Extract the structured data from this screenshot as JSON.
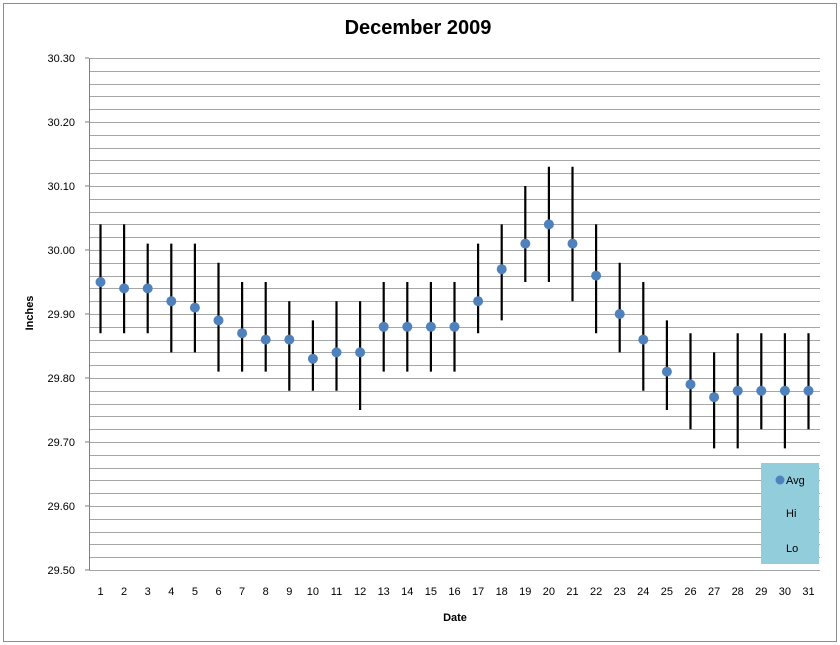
{
  "chart_data": {
    "type": "scatter",
    "title": "December 2009",
    "xlabel": "Date",
    "ylabel": "Inches",
    "x": [
      1,
      2,
      3,
      4,
      5,
      6,
      7,
      8,
      9,
      10,
      11,
      12,
      13,
      14,
      15,
      16,
      17,
      18,
      19,
      20,
      21,
      22,
      23,
      24,
      25,
      26,
      27,
      28,
      29,
      30,
      31
    ],
    "x_tick_labels": [
      "1",
      "2",
      "3",
      "4",
      "5",
      "6",
      "7",
      "8",
      "9",
      "10",
      "11",
      "12",
      "13",
      "14",
      "15",
      "16",
      "17",
      "18",
      "19",
      "20",
      "21",
      "22",
      "23",
      "24",
      "25",
      "26",
      "27",
      "28",
      "29",
      "30",
      "31"
    ],
    "ylim": [
      29.5,
      30.3
    ],
    "y_tick_labels": [
      "29.50",
      "29.60",
      "29.70",
      "29.80",
      "29.90",
      "30.00",
      "30.10",
      "30.20",
      "30.30"
    ],
    "y_ticks": [
      29.5,
      29.6,
      29.7,
      29.8,
      29.9,
      30.0,
      30.1,
      30.2,
      30.3
    ],
    "minor_grid_step": 0.02,
    "grid": true,
    "legend_position": "bottom-right",
    "series": [
      {
        "name": "Avg",
        "values": [
          29.95,
          29.94,
          29.94,
          29.92,
          29.91,
          29.89,
          29.87,
          29.86,
          29.86,
          29.83,
          29.84,
          29.84,
          29.88,
          29.88,
          29.88,
          29.88,
          29.92,
          29.97,
          30.01,
          30.04,
          30.01,
          29.96,
          29.9,
          29.86,
          29.81,
          29.79,
          29.77,
          29.78,
          29.78,
          29.78,
          29.78
        ]
      },
      {
        "name": "Hi",
        "values": [
          30.04,
          30.04,
          30.01,
          30.01,
          30.01,
          29.98,
          29.95,
          29.95,
          29.92,
          29.89,
          29.92,
          29.92,
          29.95,
          29.95,
          29.95,
          29.95,
          30.01,
          30.04,
          30.1,
          30.13,
          30.13,
          30.04,
          29.98,
          29.95,
          29.89,
          29.87,
          29.84,
          29.87,
          29.87,
          29.87,
          29.87
        ]
      },
      {
        "name": "Lo",
        "values": [
          29.87,
          29.87,
          29.87,
          29.84,
          29.84,
          29.81,
          29.81,
          29.81,
          29.78,
          29.78,
          29.78,
          29.75,
          29.81,
          29.81,
          29.81,
          29.81,
          29.87,
          29.89,
          29.95,
          29.95,
          29.92,
          29.87,
          29.84,
          29.78,
          29.75,
          29.72,
          29.69,
          29.69,
          29.72,
          29.69,
          29.72
        ]
      }
    ],
    "colors": {
      "avg_marker": "#4f81bd",
      "error_bar": "#000000",
      "grid": "#a6a6a6",
      "legend_bg": "#92cddc"
    }
  }
}
